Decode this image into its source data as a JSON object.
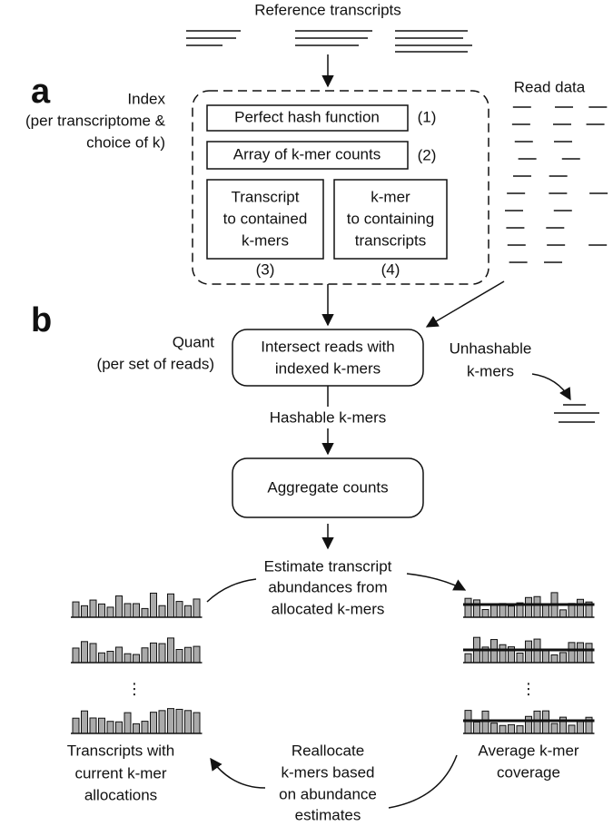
{
  "reference_label": "Reference transcripts",
  "panel_a": {
    "letter": "a",
    "index_label": [
      "Index",
      "(per transcriptome &",
      "choice of k)"
    ],
    "read_data": "Read data",
    "boxes": [
      {
        "lines": [
          "Perfect hash function"
        ],
        "number": "(1)"
      },
      {
        "lines": [
          "Array of k-mer counts"
        ],
        "number": "(2)"
      },
      {
        "lines": [
          "Transcript",
          "to contained",
          "k-mers"
        ],
        "number": "(3)"
      },
      {
        "lines": [
          "k-mer",
          "to containing",
          "transcripts"
        ],
        "number": "(4)"
      }
    ]
  },
  "panel_b": {
    "letter": "b",
    "quant_label": [
      "Quant",
      "(per set of reads)"
    ],
    "intersect": [
      "Intersect reads with",
      "indexed k-mers"
    ],
    "unhashable": [
      "Unhashable",
      "k-mers"
    ],
    "hashable": "Hashable k-mers",
    "aggregate": "Aggregate counts",
    "estimate": [
      "Estimate transcript",
      "abundances from",
      "allocated k-mers"
    ],
    "transcripts": [
      "Transcripts with",
      "current k-mer",
      "allocations"
    ],
    "reallocate": [
      "Reallocate",
      "k-mers based",
      "on abundance",
      "estimates"
    ],
    "coverage": [
      "Average k-mer",
      "coverage"
    ],
    "ellipsis": "⋮"
  }
}
